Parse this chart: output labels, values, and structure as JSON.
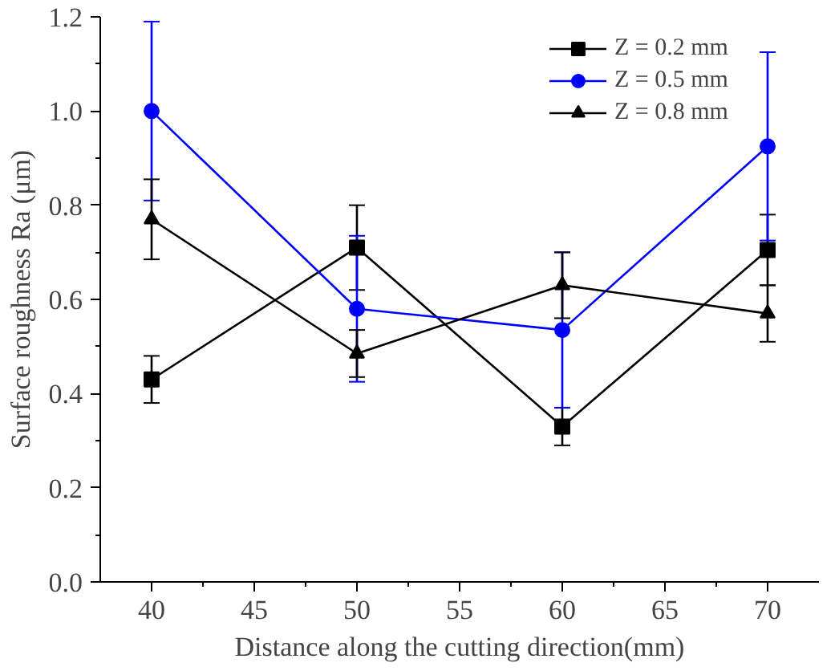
{
  "chart_data": {
    "type": "line",
    "xlabel": "Distance along the cutting direction(mm)",
    "ylabel": "Surface roughness Ra (μm)",
    "x": [
      40,
      50,
      60,
      70
    ],
    "xlim": [
      37.5,
      72.5
    ],
    "xticks": [
      40,
      45,
      50,
      55,
      60,
      65,
      70
    ],
    "ylim": [
      0,
      1.2
    ],
    "yticks": [
      {
        "value": 0,
        "label": "0.0"
      },
      0.2,
      0.4,
      0.6,
      0.8,
      {
        "value": 1,
        "label": "1.0"
      },
      1.2
    ],
    "grid": false,
    "legend": "top right",
    "line_style": "solid",
    "series": [
      {
        "name": "Z = 0.2 mm",
        "color": "#000000",
        "marker": "square",
        "values": [
          0.43,
          0.71,
          0.33,
          0.705
        ],
        "errors": [
          0.05,
          0.09,
          0.04,
          0.075
        ]
      },
      {
        "name": "Z = 0.5 mm",
        "color": "#0000ff",
        "marker": "circle",
        "values": [
          1.0,
          0.58,
          0.535,
          0.925
        ],
        "errors": [
          0.19,
          0.155,
          0.165,
          0.2
        ]
      },
      {
        "name": "Z = 0.8 mm",
        "color": "#000000",
        "marker": "triangle",
        "values": [
          0.77,
          0.485,
          0.63,
          0.57
        ],
        "errors": [
          0.085,
          0.05,
          0.07,
          0.06
        ]
      }
    ]
  }
}
